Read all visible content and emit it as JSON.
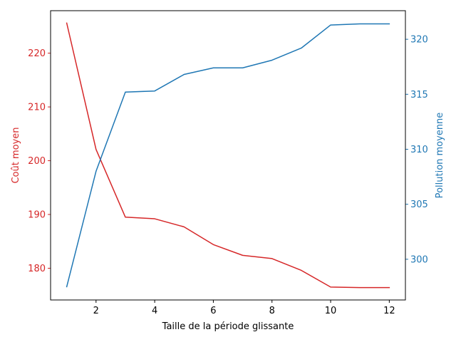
{
  "chart_data": {
    "type": "line",
    "xlabel": "Taille de la période glissante",
    "x": [
      1,
      2,
      3,
      4,
      5,
      6,
      7,
      8,
      9,
      10,
      11,
      12
    ],
    "xlim": [
      0.45,
      12.55
    ],
    "xticks": [
      2,
      4,
      6,
      8,
      10,
      12
    ],
    "grid": false,
    "series": [
      {
        "name": "Coût moyen",
        "axis": "left",
        "color": "#d62728",
        "values": [
          225.6,
          202.1,
          189.5,
          189.2,
          187.7,
          184.4,
          182.4,
          181.8,
          179.6,
          176.5,
          176.4,
          176.4
        ]
      },
      {
        "name": "Pollution moyenne",
        "axis": "right",
        "color": "#1f77b4",
        "values": [
          297.5,
          308.0,
          315.2,
          315.3,
          316.8,
          317.4,
          317.4,
          318.1,
          319.2,
          321.3,
          321.4,
          321.4
        ]
      }
    ],
    "y_left": {
      "label": "Coût moyen",
      "color": "#d62728",
      "lim": [
        174.1,
        227.9
      ],
      "ticks": [
        180,
        190,
        200,
        210,
        220
      ]
    },
    "y_right": {
      "label": "Pollution moyenne",
      "color": "#1f77b4",
      "lim": [
        296.3,
        322.6
      ],
      "ticks": [
        300,
        305,
        310,
        315,
        320
      ]
    }
  }
}
